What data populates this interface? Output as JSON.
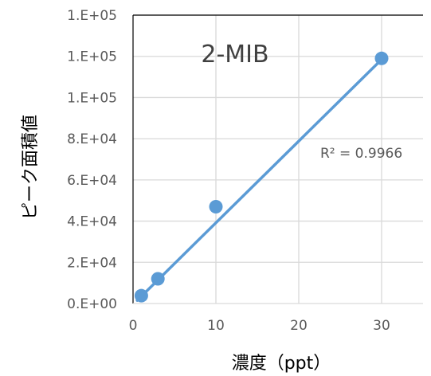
{
  "chart_data": {
    "type": "scatter",
    "title": "2-MIB",
    "xlabel": "濃度（ppt）",
    "ylabel": "ピーク面積値",
    "xlim": [
      0,
      35
    ],
    "ylim": [
      0,
      140000
    ],
    "x_ticks": [
      0,
      10,
      20,
      30
    ],
    "x_tick_labels": [
      "0",
      "10",
      "20",
      "30"
    ],
    "y_ticks": [
      0,
      20000,
      40000,
      60000,
      80000,
      100000,
      120000,
      140000
    ],
    "y_tick_labels": [
      "0.E+00",
      "2.E+04",
      "4.E+04",
      "6.E+04",
      "8.E+04",
      "1.E+05",
      "1.E+05",
      "1.E+05"
    ],
    "grid": true,
    "colors": {
      "series": "#5b9bd5",
      "grid": "#d9d9d9",
      "axis": "#000000"
    },
    "series": [
      {
        "x": [
          1,
          3,
          10,
          30
        ],
        "y": [
          3800,
          12000,
          47000,
          119000
        ]
      }
    ],
    "trendline": {
      "type": "linear",
      "x_range": [
        0.5,
        30
      ],
      "y_range": [
        1500,
        118500
      ],
      "label": "R² = 0.9966"
    }
  }
}
